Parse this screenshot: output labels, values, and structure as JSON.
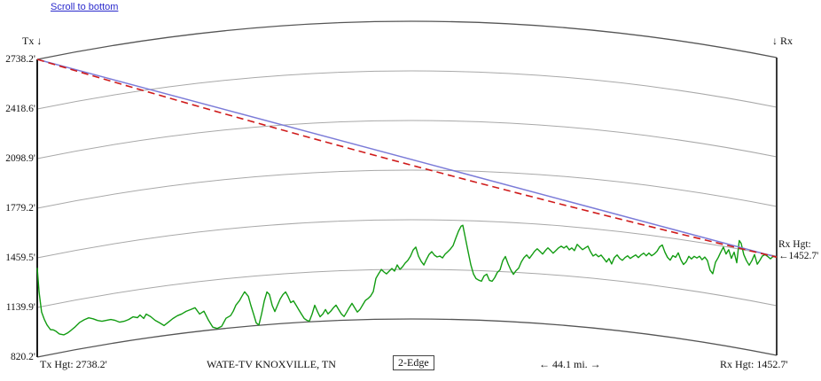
{
  "page": {
    "scroll_link": "Scroll to bottom"
  },
  "chart_data": {
    "type": "line",
    "title": "WATE-TV KNOXVILLE, TN",
    "mode": "2-Edge",
    "distance_label": "← 44.1 mi. →",
    "grid": "curved-earth-arcs",
    "x_range_mi": [
      0,
      44.1
    ],
    "y_range_ft": [
      820.2,
      2738.2
    ],
    "y_ticks_ft": [
      2738.2,
      2418.6,
      2098.9,
      1779.2,
      1459.5,
      1139.9,
      820.2
    ],
    "tx": {
      "marker": "Tx ↓",
      "height_ft": 2738.2,
      "height_label": "Tx Hgt: 2738.2'"
    },
    "rx": {
      "marker": "↓ Rx",
      "height_ft": 1452.7,
      "height_label": "Rx Hgt: 1452.7'",
      "side_title": "Rx Hgt:",
      "side_pointer": "←",
      "side_value": "1452.7'"
    },
    "colors": {
      "line_of_sight": "#7b7bd8",
      "refraction_path": "#cf1b1b",
      "terrain": "#129c12",
      "grid": "#a8a8a8",
      "frame": "#555555"
    },
    "series": [
      {
        "name": "line-of-sight",
        "style": "solid",
        "points_mi_ft": [
          [
            0,
            2738.2
          ],
          [
            44.1,
            1452.7
          ]
        ]
      },
      {
        "name": "refraction-path",
        "style": "dashed",
        "mid_sag_ft": 37,
        "points_mi_ft": [
          [
            0,
            2738.2
          ],
          [
            44.1,
            1452.7
          ]
        ]
      },
      {
        "name": "terrain",
        "style": "solid",
        "points_mi_ft": [
          [
            0.0,
            1395
          ],
          [
            0.11,
            1235
          ],
          [
            0.26,
            1105
          ],
          [
            0.42,
            1055
          ],
          [
            0.58,
            1015
          ],
          [
            0.79,
            980
          ],
          [
            0.95,
            975
          ],
          [
            1.11,
            963
          ],
          [
            1.32,
            941
          ],
          [
            1.59,
            930
          ],
          [
            1.8,
            937
          ],
          [
            2.01,
            950
          ],
          [
            2.27,
            968
          ],
          [
            2.54,
            991
          ],
          [
            2.8,
            1003
          ],
          [
            3.07,
            1010
          ],
          [
            3.33,
            999
          ],
          [
            3.6,
            983
          ],
          [
            3.86,
            973
          ],
          [
            4.12,
            974
          ],
          [
            4.39,
            975
          ],
          [
            4.65,
            965
          ],
          [
            4.92,
            949
          ],
          [
            5.18,
            950
          ],
          [
            5.45,
            957
          ],
          [
            5.71,
            970
          ],
          [
            5.98,
            960
          ],
          [
            6.13,
            975
          ],
          [
            6.35,
            949
          ],
          [
            6.5,
            975
          ],
          [
            6.77,
            954
          ],
          [
            7.03,
            927
          ],
          [
            7.3,
            906
          ],
          [
            7.56,
            885
          ],
          [
            7.83,
            904
          ],
          [
            8.09,
            923
          ],
          [
            8.36,
            937
          ],
          [
            8.62,
            945
          ],
          [
            8.88,
            958
          ],
          [
            9.15,
            966
          ],
          [
            9.41,
            975
          ],
          [
            9.68,
            931
          ],
          [
            9.94,
            946
          ],
          [
            10.21,
            885
          ],
          [
            10.47,
            837
          ],
          [
            10.73,
            825
          ],
          [
            11.0,
            836
          ],
          [
            11.26,
            885
          ],
          [
            11.53,
            899
          ],
          [
            11.69,
            926
          ],
          [
            11.85,
            964
          ],
          [
            12.06,
            990
          ],
          [
            12.21,
            1017
          ],
          [
            12.37,
            1044
          ],
          [
            12.59,
            1013
          ],
          [
            12.74,
            954
          ],
          [
            12.9,
            896
          ],
          [
            13.06,
            837
          ],
          [
            13.22,
            822
          ],
          [
            13.38,
            891
          ],
          [
            13.54,
            975
          ],
          [
            13.7,
            1031
          ],
          [
            13.85,
            1013
          ],
          [
            14.01,
            942
          ],
          [
            14.17,
            901
          ],
          [
            14.33,
            940
          ],
          [
            14.49,
            979
          ],
          [
            14.65,
            1006
          ],
          [
            14.81,
            1022
          ],
          [
            14.96,
            992
          ],
          [
            15.12,
            951
          ],
          [
            15.28,
            961
          ],
          [
            15.44,
            932
          ],
          [
            15.6,
            902
          ],
          [
            15.76,
            873
          ],
          [
            15.92,
            844
          ],
          [
            16.08,
            831
          ],
          [
            16.23,
            824
          ],
          [
            16.39,
            869
          ],
          [
            16.55,
            925
          ],
          [
            16.71,
            885
          ],
          [
            16.87,
            849
          ],
          [
            17.03,
            866
          ],
          [
            17.19,
            894
          ],
          [
            17.34,
            865
          ],
          [
            17.5,
            881
          ],
          [
            17.66,
            903
          ],
          [
            17.82,
            919
          ],
          [
            17.98,
            890
          ],
          [
            18.14,
            861
          ],
          [
            18.3,
            844
          ],
          [
            18.46,
            872
          ],
          [
            18.61,
            900
          ],
          [
            18.77,
            927
          ],
          [
            18.93,
            899
          ],
          [
            19.09,
            870
          ],
          [
            19.25,
            886
          ],
          [
            19.41,
            915
          ],
          [
            19.57,
            943
          ],
          [
            19.72,
            954
          ],
          [
            19.88,
            971
          ],
          [
            20.04,
            999
          ],
          [
            20.2,
            1084
          ],
          [
            20.36,
            1113
          ],
          [
            20.52,
            1141
          ],
          [
            20.68,
            1124
          ],
          [
            20.83,
            1112
          ],
          [
            20.99,
            1129
          ],
          [
            21.15,
            1146
          ],
          [
            21.31,
            1129
          ],
          [
            21.47,
            1169
          ],
          [
            21.63,
            1140
          ],
          [
            21.79,
            1157
          ],
          [
            21.94,
            1180
          ],
          [
            22.1,
            1197
          ],
          [
            22.26,
            1225
          ],
          [
            22.42,
            1265
          ],
          [
            22.58,
            1283
          ],
          [
            22.74,
            1225
          ],
          [
            22.9,
            1191
          ],
          [
            23.06,
            1168
          ],
          [
            23.21,
            1203
          ],
          [
            23.37,
            1237
          ],
          [
            23.53,
            1255
          ],
          [
            23.69,
            1232
          ],
          [
            23.85,
            1221
          ],
          [
            24.01,
            1227
          ],
          [
            24.17,
            1215
          ],
          [
            24.32,
            1239
          ],
          [
            24.48,
            1256
          ],
          [
            24.64,
            1273
          ],
          [
            24.8,
            1296
          ],
          [
            24.96,
            1343
          ],
          [
            25.12,
            1389
          ],
          [
            25.28,
            1423
          ],
          [
            25.38,
            1429
          ],
          [
            25.54,
            1344
          ],
          [
            25.7,
            1259
          ],
          [
            25.86,
            1174
          ],
          [
            26.02,
            1116
          ],
          [
            26.17,
            1088
          ],
          [
            26.33,
            1078
          ],
          [
            26.49,
            1072
          ],
          [
            26.65,
            1107
          ],
          [
            26.81,
            1119
          ],
          [
            26.97,
            1080
          ],
          [
            27.13,
            1075
          ],
          [
            27.28,
            1098
          ],
          [
            27.44,
            1133
          ],
          [
            27.6,
            1151
          ],
          [
            27.76,
            1209
          ],
          [
            27.92,
            1238
          ],
          [
            28.08,
            1193
          ],
          [
            28.24,
            1154
          ],
          [
            28.4,
            1126
          ],
          [
            28.55,
            1150
          ],
          [
            28.71,
            1168
          ],
          [
            28.87,
            1209
          ],
          [
            29.03,
            1238
          ],
          [
            29.19,
            1256
          ],
          [
            29.35,
            1235
          ],
          [
            29.51,
            1259
          ],
          [
            29.66,
            1283
          ],
          [
            29.82,
            1300
          ],
          [
            29.98,
            1284
          ],
          [
            30.14,
            1268
          ],
          [
            30.3,
            1292
          ],
          [
            30.46,
            1311
          ],
          [
            30.62,
            1295
          ],
          [
            30.77,
            1279
          ],
          [
            30.93,
            1297
          ],
          [
            31.09,
            1316
          ],
          [
            31.25,
            1329
          ],
          [
            31.41,
            1318
          ],
          [
            31.57,
            1332
          ],
          [
            31.73,
            1310
          ],
          [
            31.88,
            1323
          ],
          [
            32.04,
            1307
          ],
          [
            32.2,
            1349
          ],
          [
            32.36,
            1333
          ],
          [
            32.52,
            1318
          ],
          [
            32.68,
            1331
          ],
          [
            32.84,
            1344
          ],
          [
            32.99,
            1311
          ],
          [
            33.15,
            1284
          ],
          [
            33.31,
            1297
          ],
          [
            33.47,
            1282
          ],
          [
            33.63,
            1295
          ],
          [
            33.79,
            1275
          ],
          [
            33.95,
            1254
          ],
          [
            34.1,
            1278
          ],
          [
            34.26,
            1245
          ],
          [
            34.42,
            1288
          ],
          [
            34.58,
            1307
          ],
          [
            34.74,
            1286
          ],
          [
            34.9,
            1276
          ],
          [
            35.06,
            1296
          ],
          [
            35.21,
            1309
          ],
          [
            35.37,
            1294
          ],
          [
            35.53,
            1308
          ],
          [
            35.69,
            1321
          ],
          [
            35.85,
            1306
          ],
          [
            36.01,
            1325
          ],
          [
            36.17,
            1339
          ],
          [
            36.32,
            1324
          ],
          [
            36.48,
            1344
          ],
          [
            36.64,
            1329
          ],
          [
            36.8,
            1342
          ],
          [
            36.96,
            1362
          ],
          [
            37.12,
            1393
          ],
          [
            37.28,
            1407
          ],
          [
            37.43,
            1364
          ],
          [
            37.59,
            1332
          ],
          [
            37.75,
            1317
          ],
          [
            37.91,
            1348
          ],
          [
            38.07,
            1340
          ],
          [
            38.23,
            1371
          ],
          [
            38.39,
            1328
          ],
          [
            38.54,
            1301
          ],
          [
            38.7,
            1321
          ],
          [
            38.86,
            1359
          ],
          [
            39.02,
            1344
          ],
          [
            39.18,
            1364
          ],
          [
            39.34,
            1356
          ],
          [
            39.5,
            1370
          ],
          [
            39.65,
            1350
          ],
          [
            39.81,
            1370
          ],
          [
            39.97,
            1350
          ],
          [
            40.13,
            1291
          ],
          [
            40.29,
            1271
          ],
          [
            40.45,
            1348
          ],
          [
            40.61,
            1380
          ],
          [
            40.76,
            1417
          ],
          [
            40.92,
            1454
          ],
          [
            41.08,
            1412
          ],
          [
            41.24,
            1443
          ],
          [
            41.4,
            1390
          ],
          [
            41.56,
            1433
          ],
          [
            41.72,
            1368
          ],
          [
            41.87,
            1514
          ],
          [
            41.98,
            1499
          ],
          [
            42.14,
            1429
          ],
          [
            42.3,
            1392
          ],
          [
            42.46,
            1367
          ],
          [
            42.62,
            1399
          ],
          [
            42.78,
            1442
          ],
          [
            42.94,
            1383
          ],
          [
            43.09,
            1410
          ],
          [
            43.25,
            1442
          ],
          [
            43.41,
            1454
          ],
          [
            43.57,
            1445
          ],
          [
            43.73,
            1434
          ],
          [
            43.89,
            1453
          ],
          [
            44.1,
            1452
          ]
        ]
      }
    ]
  }
}
